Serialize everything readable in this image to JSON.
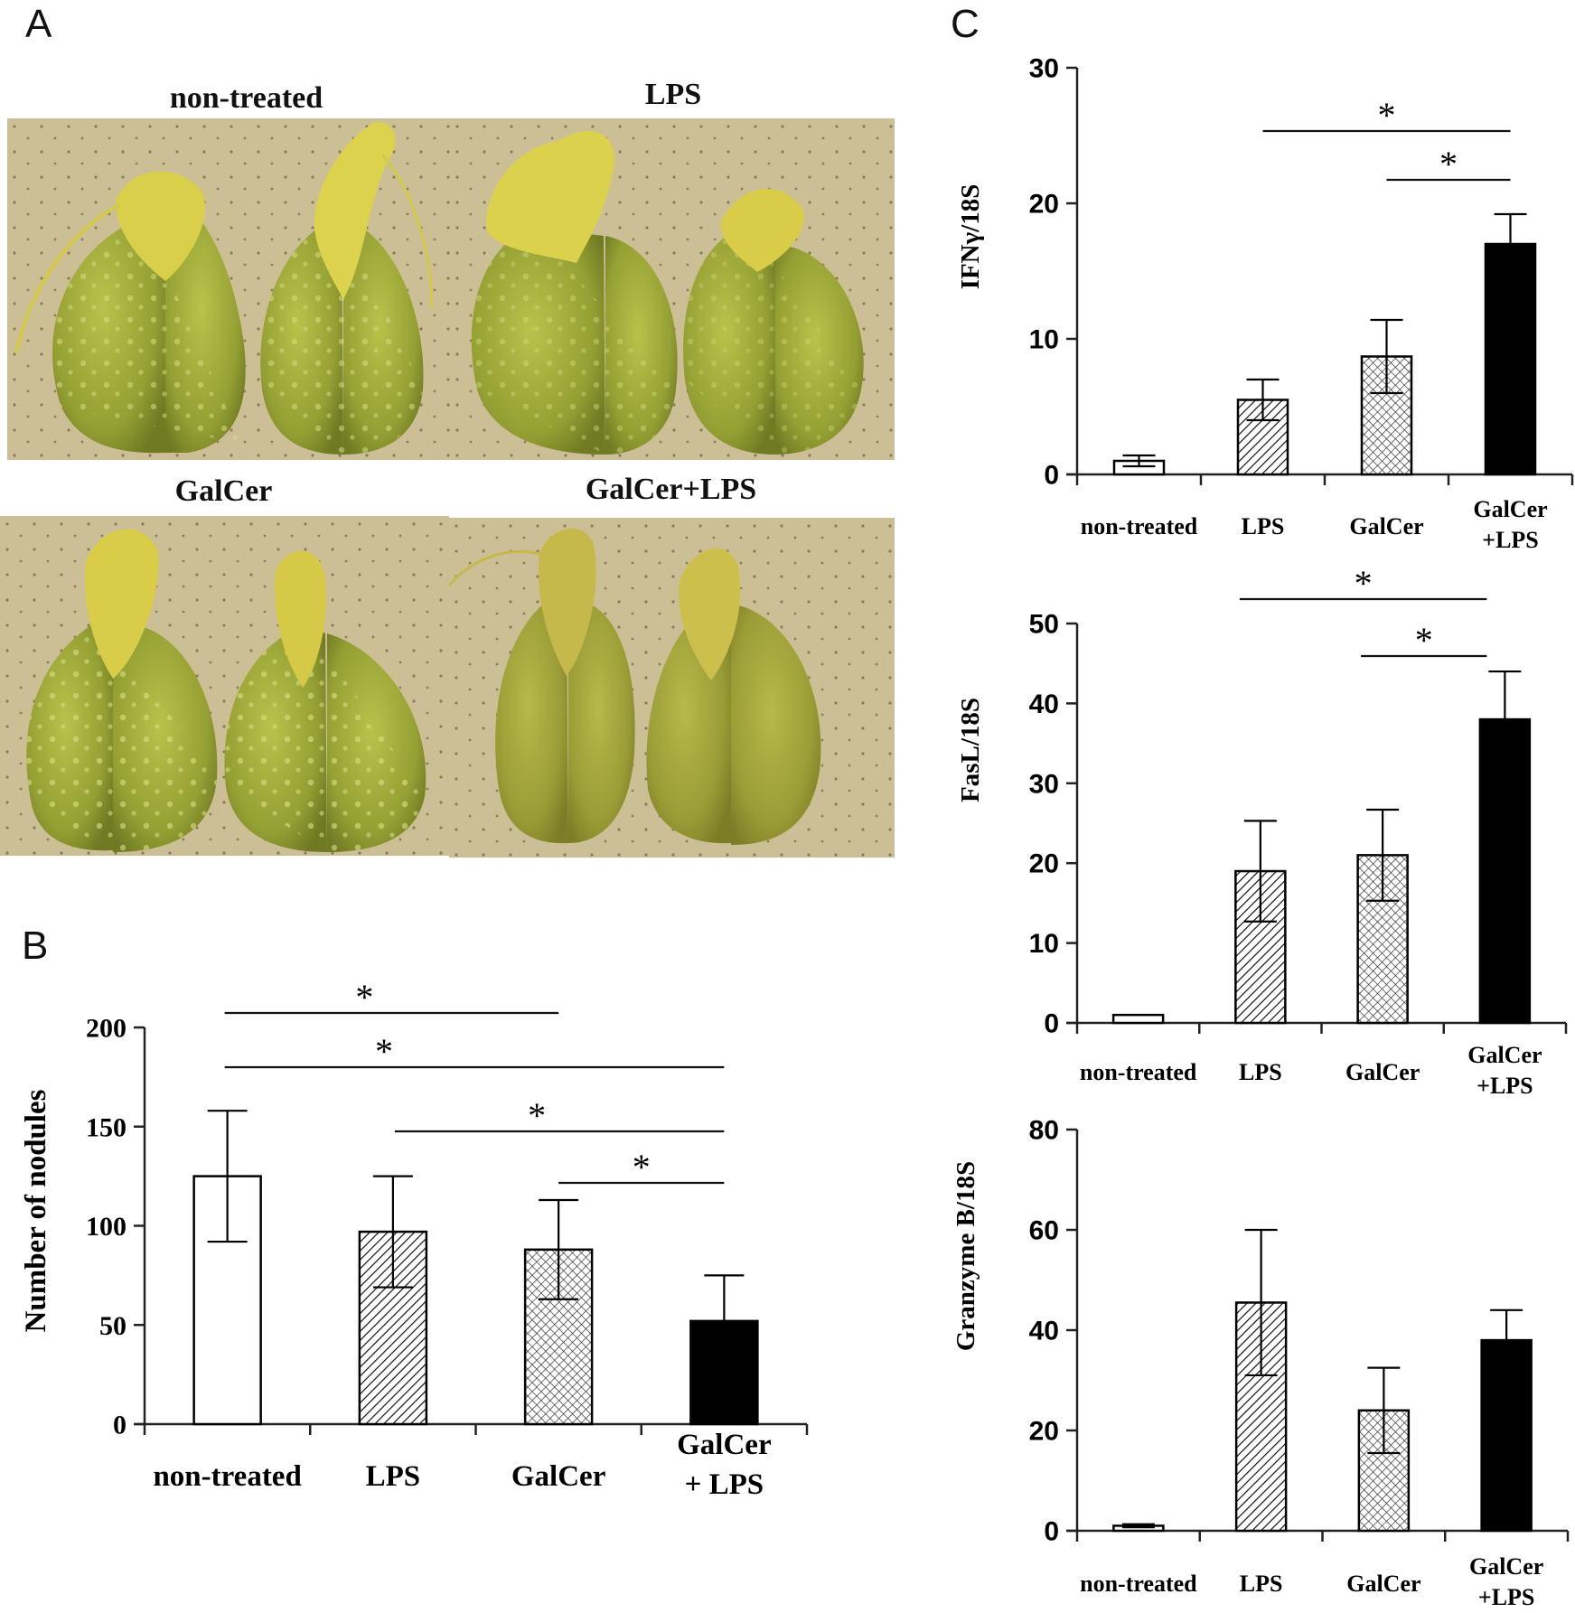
{
  "panels": {
    "a": "A",
    "b": "B",
    "c": "C"
  },
  "photos": [
    {
      "label": "non-treated"
    },
    {
      "label": "LPS"
    },
    {
      "label": "GalCer"
    },
    {
      "label": "GalCer+LPS"
    }
  ],
  "significance_mark": "*",
  "chart_data": [
    {
      "type": "bar",
      "panel": "B",
      "ylabel": "Number of nodules",
      "ylim": [
        0,
        200
      ],
      "yticks": [
        0,
        50,
        100,
        150,
        200
      ],
      "categories": [
        [
          "non-treated"
        ],
        [
          "LPS"
        ],
        [
          "GalCer"
        ],
        [
          "GalCer",
          "+ LPS"
        ]
      ],
      "values": [
        125,
        97,
        88,
        52
      ],
      "errors": [
        33,
        28,
        25,
        23
      ],
      "fills": [
        "white",
        "hatch-diagonal",
        "hatch-cross",
        "black"
      ],
      "significance": [
        [
          0,
          2
        ],
        [
          0,
          3
        ],
        [
          1,
          3
        ],
        [
          2,
          3
        ]
      ]
    },
    {
      "type": "bar",
      "panel": "C",
      "ylabel": "IFNγ/18S",
      "ylim": [
        0,
        30
      ],
      "yticks": [
        0,
        10,
        20,
        30
      ],
      "categories": [
        [
          "non-treated"
        ],
        [
          "LPS"
        ],
        [
          "GalCer"
        ],
        [
          "GalCer",
          "+LPS"
        ]
      ],
      "values": [
        1,
        5.5,
        8.7,
        17
      ],
      "errors": [
        0.4,
        1.5,
        2.7,
        2.2
      ],
      "fills": [
        "white",
        "hatch-diagonal",
        "hatch-cross",
        "black"
      ],
      "significance": [
        [
          1,
          3
        ],
        [
          2,
          3
        ]
      ]
    },
    {
      "type": "bar",
      "panel": "C",
      "ylabel": "FasL/18S",
      "ylim": [
        0,
        50
      ],
      "yticks": [
        0,
        10,
        20,
        30,
        40,
        50
      ],
      "categories": [
        [
          "non-treated"
        ],
        [
          "LPS"
        ],
        [
          "GalCer"
        ],
        [
          "GalCer",
          "+LPS"
        ]
      ],
      "values": [
        1,
        19,
        21,
        38
      ],
      "errors": [
        0,
        6.3,
        5.7,
        6
      ],
      "fills": [
        "white",
        "hatch-diagonal",
        "hatch-cross",
        "black"
      ],
      "significance": [
        [
          1,
          3
        ],
        [
          2,
          3
        ]
      ]
    },
    {
      "type": "bar",
      "panel": "C",
      "ylabel": "Granzyme B/18S",
      "ylim": [
        0,
        80
      ],
      "yticks": [
        0,
        20,
        40,
        60,
        80
      ],
      "categories": [
        [
          "non-treated"
        ],
        [
          "LPS"
        ],
        [
          "GalCer"
        ],
        [
          "GalCer",
          "+LPS"
        ]
      ],
      "values": [
        1,
        45.5,
        24,
        38
      ],
      "errors": [
        0.3,
        14.5,
        8.5,
        6
      ],
      "fills": [
        "white",
        "hatch-diagonal",
        "hatch-cross",
        "black"
      ],
      "significance": []
    }
  ]
}
